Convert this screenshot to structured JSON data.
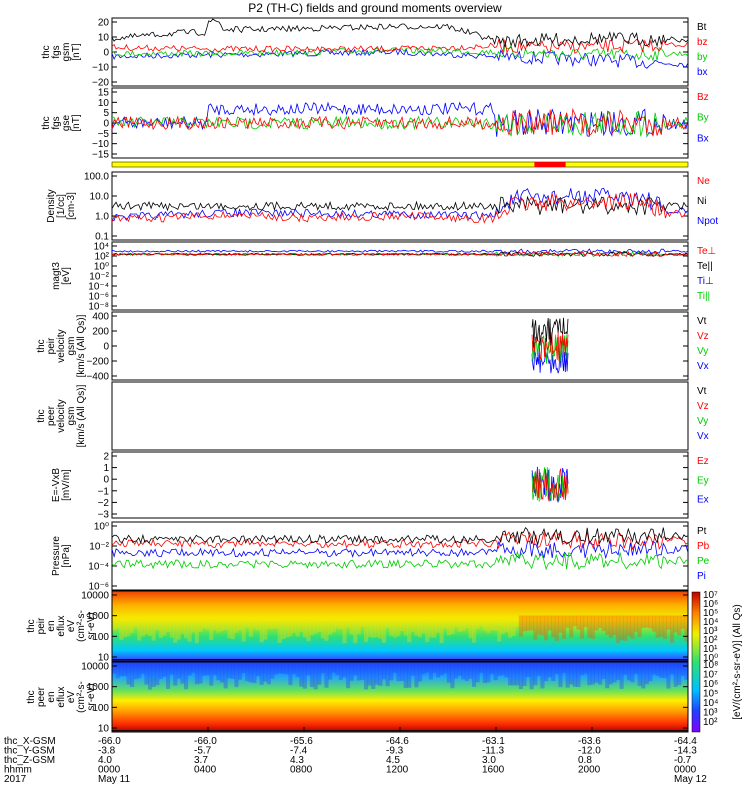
{
  "title": "P2 (TH-C) fields and ground moments overview",
  "chart_data": {
    "type": "line",
    "panels": [
      {
        "id": "fgs_gsm",
        "ylabel": [
          "thc",
          "fgs",
          "gsm",
          "[nT]"
        ],
        "ticks": [
          "20",
          "10",
          "0",
          "−10",
          "−20"
        ],
        "ylim": [
          -20,
          20
        ],
        "legend": [
          {
            "name": "Bt",
            "color": "#000000"
          },
          {
            "name": "bz",
            "color": "#ff0000"
          },
          {
            "name": "by",
            "color": "#00cc00"
          },
          {
            "name": "bx",
            "color": "#0000ff"
          }
        ]
      },
      {
        "id": "fgs_gse",
        "ylabel": [
          "thc",
          "fgs",
          "gse",
          "[nT]"
        ],
        "ticks": [
          "15",
          "10",
          "5",
          "0",
          "−5",
          "−10",
          "−15"
        ],
        "ylim": [
          -15,
          15
        ],
        "legend": [
          {
            "name": "Bz",
            "color": "#ff0000"
          },
          {
            "name": "By",
            "color": "#00cc00"
          },
          {
            "name": "Bx",
            "color": "#0000ff"
          }
        ]
      },
      {
        "id": "density",
        "ylabel": [
          "Density",
          "[1/cc]",
          "[cm-3]"
        ],
        "ticks": [
          "100.0",
          "10.0",
          "1.0",
          "0.1"
        ],
        "scale": "log",
        "legend": [
          {
            "name": "Ne",
            "color": "#ff0000"
          },
          {
            "name": "Ni",
            "color": "#000000"
          },
          {
            "name": "Npot",
            "color": "#0000ff"
          }
        ]
      },
      {
        "id": "temp",
        "ylabel": [
          "magt3",
          "[eV]"
        ],
        "ticks": [
          "10⁴",
          "10²",
          "10⁰",
          "10⁻²",
          "10⁻⁴",
          "10⁻⁶",
          "10⁻⁸"
        ],
        "scale": "log",
        "legend": [
          {
            "name": "Te⊥",
            "color": "#ff0000"
          },
          {
            "name": "Te||",
            "color": "#000000"
          },
          {
            "name": "Ti⊥",
            "color": "#0000ff"
          },
          {
            "name": "Ti||",
            "color": "#00cc00"
          }
        ]
      },
      {
        "id": "peir_vel",
        "ylabel": [
          "thc",
          "peir",
          "velocity",
          "gsm",
          "[km/s (All Qs)]"
        ],
        "ticks": [
          "400",
          "200",
          "0",
          "−200",
          "−400"
        ],
        "ylim": [
          -400,
          400
        ],
        "legend": [
          {
            "name": "Vt",
            "color": "#000000"
          },
          {
            "name": "Vz",
            "color": "#ff0000"
          },
          {
            "name": "Vy",
            "color": "#00cc00"
          },
          {
            "name": "Vx",
            "color": "#0000ff"
          }
        ]
      },
      {
        "id": "peer_vel",
        "ylabel": [
          "thc",
          "peer",
          "velocity",
          "gsm",
          "[km/s (All Qs)]"
        ],
        "ticks": [],
        "legend": [
          {
            "name": "Vt",
            "color": "#000000"
          },
          {
            "name": "Vz",
            "color": "#ff0000"
          },
          {
            "name": "Vy",
            "color": "#00cc00"
          },
          {
            "name": "Vx",
            "color": "#0000ff"
          }
        ]
      },
      {
        "id": "efield",
        "ylabel": [
          "E=-VxB",
          "[mV/m]"
        ],
        "ticks": [
          "2",
          "1",
          "0",
          "−1",
          "−2",
          "−3"
        ],
        "ylim": [
          -3,
          2
        ],
        "legend": [
          {
            "name": "Ez",
            "color": "#ff0000"
          },
          {
            "name": "Ey",
            "color": "#00cc00"
          },
          {
            "name": "Ex",
            "color": "#0000ff"
          }
        ]
      },
      {
        "id": "pressure",
        "ylabel": [
          "Pressure",
          "[nPa]"
        ],
        "ticks": [
          "10⁰",
          "10⁻²",
          "10⁻⁴",
          "10⁻⁶"
        ],
        "scale": "log",
        "legend": [
          {
            "name": "Pt",
            "color": "#000000"
          },
          {
            "name": "Pb",
            "color": "#ff0000"
          },
          {
            "name": "Pe",
            "color": "#00cc00"
          },
          {
            "name": "Pi",
            "color": "#0000ff"
          }
        ]
      },
      {
        "id": "peir_eflux",
        "ylabel": [
          "thc",
          "peir",
          "en",
          "eflux",
          "eV",
          "(cm²-s-",
          "sr-eV)"
        ],
        "ticks": [
          "10000",
          "1000",
          "100",
          "10"
        ],
        "type": "spectrogram"
      },
      {
        "id": "peer_eflux",
        "ylabel": [
          "thc",
          "peer",
          "en",
          "eflux",
          "eV",
          "(cm²-s-",
          "sr-eV)"
        ],
        "ticks": [
          "10000",
          "1000",
          "100",
          "10"
        ],
        "type": "spectrogram"
      }
    ],
    "colorbar": {
      "label": "[eV/(cm²-s-sr-eV)] (All Qs)",
      "ticks": [
        "10⁷",
        "10⁶",
        "10⁵",
        "10⁴",
        "10³",
        "10²",
        "10¹",
        "10⁰"
      ]
    },
    "colorbar2_ticks": [
      "10⁸",
      "10⁷",
      "10⁶",
      "10⁵",
      "10⁴",
      "10³",
      "10²"
    ],
    "x_axis": {
      "rows": [
        {
          "label": "thc_X-GSM",
          "values": [
            "-66.0",
            "-66.0",
            "-65.6",
            "-64.6",
            "-63.1",
            "-63.6",
            "-64.4"
          ]
        },
        {
          "label": "thc_Y-GSM",
          "values": [
            "-3.8",
            "-5.7",
            "-7.4",
            "-9.3",
            "-11.3",
            "-12.0",
            "-14.3"
          ]
        },
        {
          "label": "thc_Z-GSM",
          "values": [
            "4.0",
            "3.7",
            "4.3",
            "4.5",
            "3.0",
            "0.8",
            "-0.7"
          ]
        },
        {
          "label": "hhmm",
          "values": [
            "0000",
            "0400",
            "0800",
            "1200",
            "1600",
            "2000",
            "0000"
          ]
        },
        {
          "label": "2017",
          "values": [
            "May 11",
            "",
            "",
            "",
            "",
            "",
            "May 12"
          ]
        }
      ],
      "time_range_hours": [
        0,
        24
      ]
    },
    "series_shape": {
      "fgs_gsm": {
        "Bt": [
          [
            0,
            9
          ],
          [
            3,
            13
          ],
          [
            3.9,
            13
          ],
          [
            4,
            21
          ],
          [
            4.5,
            20
          ],
          [
            4.6,
            15
          ],
          [
            6,
            15
          ],
          [
            12,
            17
          ],
          [
            14,
            17
          ],
          [
            15.5,
            10
          ],
          [
            16,
            7
          ],
          [
            20,
            9
          ],
          [
            24,
            8
          ]
        ],
        "bz": [
          [
            0,
            3
          ],
          [
            4,
            2
          ],
          [
            5,
            2
          ],
          [
            12,
            2
          ],
          [
            16,
            4
          ],
          [
            18,
            3
          ],
          [
            24,
            5
          ]
        ],
        "by": [
          [
            0,
            -1
          ],
          [
            4,
            -1
          ],
          [
            12,
            1
          ],
          [
            16,
            0
          ],
          [
            20,
            -2
          ],
          [
            24,
            -1
          ]
        ],
        "bx": [
          [
            0,
            -3
          ],
          [
            3,
            -2
          ],
          [
            4,
            -2
          ],
          [
            12,
            0
          ],
          [
            16,
            -3
          ],
          [
            20,
            -5
          ],
          [
            24,
            -8
          ]
        ]
      },
      "density": {
        "Ne": [
          [
            0,
            0.5
          ],
          [
            2,
            0.6
          ],
          [
            5,
            0.9
          ],
          [
            8,
            0.6
          ],
          [
            12,
            0.8
          ],
          [
            16,
            0.5
          ],
          [
            17,
            4
          ],
          [
            20,
            5
          ],
          [
            22,
            5
          ],
          [
            23,
            1
          ],
          [
            24,
            1
          ]
        ],
        "Npot": [
          [
            0,
            0.6
          ],
          [
            5,
            1.2
          ],
          [
            12,
            1.0
          ],
          [
            16,
            0.8
          ],
          [
            17,
            8
          ],
          [
            21,
            10
          ],
          [
            22,
            9
          ],
          [
            23,
            1.2
          ],
          [
            24,
            1.5
          ]
        ]
      }
    }
  }
}
